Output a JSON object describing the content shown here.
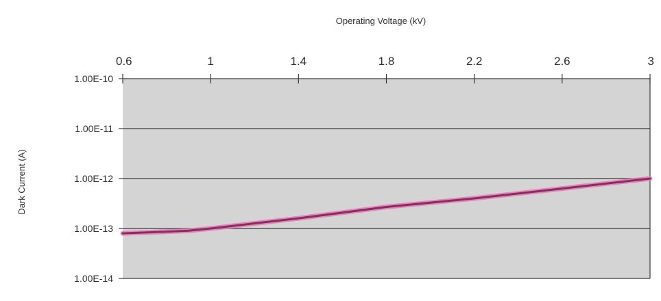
{
  "chart_data": {
    "type": "line",
    "title": "",
    "xlabel": "Operating Voltage (kV)",
    "ylabel": "Dark Current (A)",
    "x_axis_position": "top",
    "x_ticks": [
      "0.6",
      "1",
      "1.4",
      "1.8",
      "2.2",
      "2.6",
      "3"
    ],
    "y_ticks": [
      "1.00E-10",
      "1.00E-11",
      "1.00E-12",
      "1.00E-13",
      "1.00E-14"
    ],
    "xlim": [
      0.6,
      3.0
    ],
    "ylim": [
      1e-14,
      1e-10
    ],
    "y_scale": "log",
    "grid": true,
    "legend": "none",
    "colors": {
      "plot_background": "#d4d4d4",
      "gridline": "#3a3a3a",
      "series_line": "#8b2c5e",
      "series_highlight": "#e27ab8"
    },
    "series": [
      {
        "name": "",
        "x": [
          0.6,
          0.9,
          1.0,
          1.4,
          1.8,
          2.2,
          2.6,
          3.0
        ],
        "y": [
          8e-14,
          9e-14,
          1e-13,
          1.6e-13,
          2.7e-13,
          4e-13,
          6.3e-13,
          1e-12
        ]
      }
    ]
  }
}
